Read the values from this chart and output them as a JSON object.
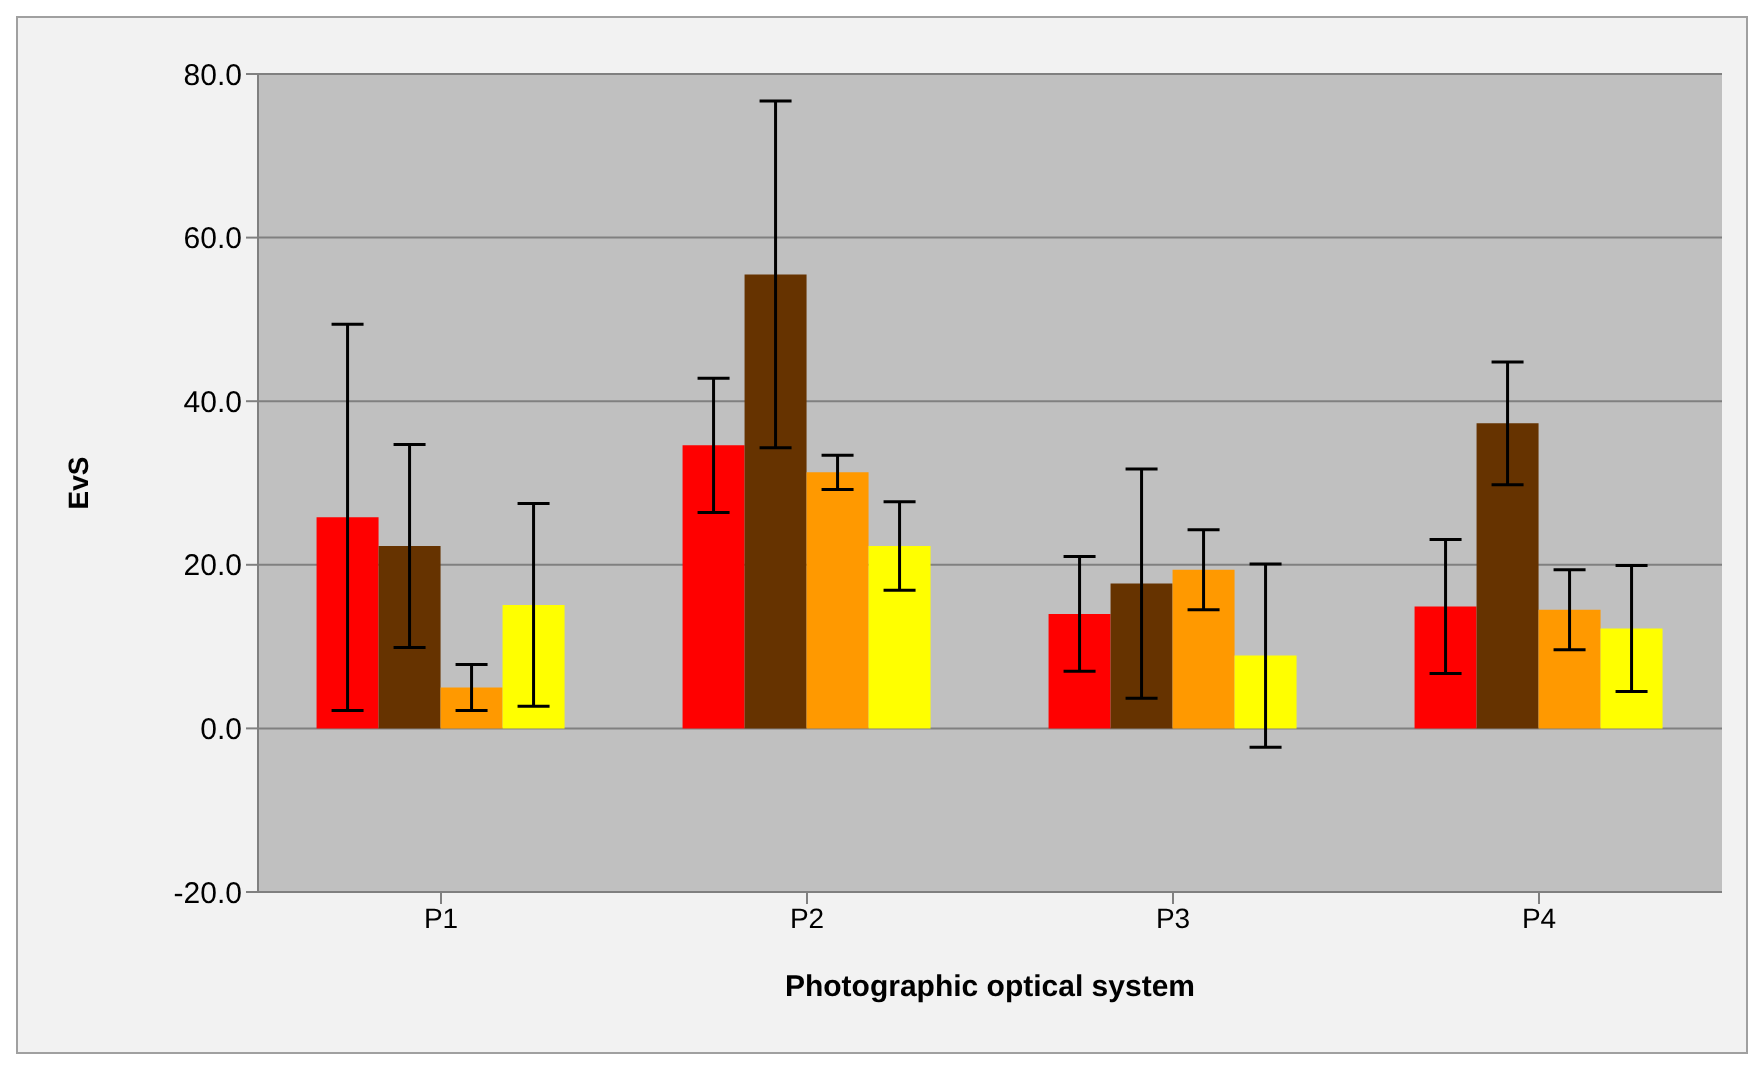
{
  "chart_data": {
    "type": "bar",
    "xlabel": "Photographic optical system",
    "ylabel": "EvS",
    "categories": [
      "P1",
      "P2",
      "P3",
      "P4"
    ],
    "series": [
      {
        "color": "#ff0000",
        "values": [
          25.8,
          34.6,
          14.0,
          14.9
        ],
        "errors": [
          23.6,
          8.2,
          7.0,
          8.2
        ]
      },
      {
        "color": "#663300",
        "values": [
          22.3,
          55.5,
          17.7,
          37.3
        ],
        "errors": [
          12.4,
          21.2,
          14.0,
          7.5
        ]
      },
      {
        "color": "#ff9900",
        "values": [
          5.0,
          31.3,
          19.4,
          14.5
        ],
        "errors": [
          2.8,
          2.1,
          4.9,
          4.9
        ]
      },
      {
        "color": "#ffff00",
        "values": [
          15.1,
          22.3,
          8.9,
          12.2
        ],
        "errors": [
          12.4,
          5.4,
          11.2,
          7.7
        ]
      }
    ],
    "ylim": [
      -20,
      80
    ],
    "yticks": [
      {
        "value": -20,
        "label": "-20.0"
      },
      {
        "value": 0,
        "label": "0.0"
      },
      {
        "value": 20,
        "label": "20.0"
      },
      {
        "value": 40,
        "label": "40.0"
      },
      {
        "value": 60,
        "label": "60.0"
      },
      {
        "value": 80,
        "label": "80.0"
      }
    ],
    "grid": "y",
    "legend": false
  }
}
